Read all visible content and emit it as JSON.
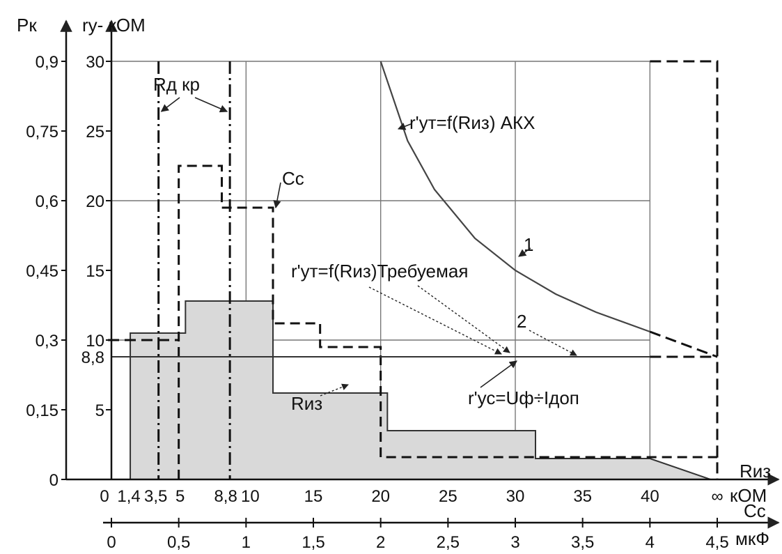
{
  "chart_data": {
    "type": "area",
    "y_axes": [
      {
        "label": "Pк",
        "ticks": [
          "0",
          "0,15",
          "0,3",
          "0,45",
          "0,6",
          "0,75",
          "0,9"
        ],
        "values": [
          0,
          0.15,
          0.3,
          0.45,
          0.6,
          0.75,
          0.9
        ]
      },
      {
        "label": "rу- кОМ",
        "ticks": [
          "5",
          "10",
          "15",
          "20",
          "25",
          "30"
        ],
        "values": [
          5,
          10,
          15,
          20,
          25,
          30
        ],
        "extra_tick": {
          "label": "8,8",
          "value": 8.8
        }
      }
    ],
    "x_axes": [
      {
        "label": "Rиз",
        "unit": "кОМ",
        "ticks": [
          "0",
          "1,4",
          "3,5",
          "5",
          "8,8",
          "10",
          "15",
          "20",
          "25",
          "30",
          "35",
          "40",
          "∞"
        ],
        "values": [
          0,
          1.4,
          3.5,
          5,
          8.8,
          10,
          15,
          20,
          25,
          30,
          35,
          40,
          45
        ]
      },
      {
        "label": "Сс",
        "unit": "мкФ",
        "ticks": [
          "0",
          "0,5",
          "1",
          "1,5",
          "2",
          "2,5",
          "3",
          "3,5",
          "4",
          "4,5"
        ],
        "values": [
          0,
          0.5,
          1,
          1.5,
          2,
          2.5,
          3,
          3.5,
          4,
          4.5
        ]
      }
    ],
    "grid": true,
    "series": [
      {
        "name": "Rиз",
        "style": "filled-step",
        "color": "#d9d9d9",
        "x": [
          1.4,
          1.4,
          5.5,
          5.5,
          12,
          12,
          20.5,
          20.5,
          31.5,
          31.5,
          40,
          44.5
        ],
        "y": [
          0,
          10.5,
          10.5,
          12.8,
          12.8,
          6.2,
          6.2,
          3.5,
          3.5,
          1.5,
          1.5,
          0
        ]
      },
      {
        "name": "Сс",
        "style": "dashed-step",
        "x": [
          5,
          5,
          8.2,
          8.2,
          12,
          12,
          15.5,
          15.5,
          20,
          20,
          45,
          45
        ],
        "y": [
          0,
          22.5,
          22.5,
          19.5,
          19.5,
          11.2,
          11.2,
          9.5,
          9.5,
          1.6,
          1.6,
          0
        ]
      },
      {
        "name": "Rд.кр",
        "style": "dash-dot",
        "x_lines": [
          3.5,
          8.8
        ]
      },
      {
        "name": "1",
        "style": "curve",
        "x": [
          20,
          22,
          24,
          27,
          30,
          33,
          36,
          40
        ],
        "y": [
          30,
          24.3,
          20.8,
          17.3,
          15.0,
          13.3,
          12.0,
          10.6
        ]
      },
      {
        "name": "2",
        "style": "horizontal",
        "x": [
          0,
          45
        ],
        "y": [
          8.8,
          8.8
        ]
      }
    ],
    "annotations": [
      {
        "text": "Rд кр",
        "target": "Rд.кр"
      },
      {
        "text": "Сс",
        "target": "Сс"
      },
      {
        "text": "r'ут=f(Rиз) АКХ",
        "target": "1"
      },
      {
        "text": "1",
        "target": "1"
      },
      {
        "text": "r'ут=f(Rиз)Требуемая",
        "target": "2"
      },
      {
        "text": "2",
        "target": "2"
      },
      {
        "text": "Rиз",
        "target": "Rиз"
      },
      {
        "text": "r'ус=Uф÷Iдоп",
        "target": "2"
      }
    ]
  }
}
